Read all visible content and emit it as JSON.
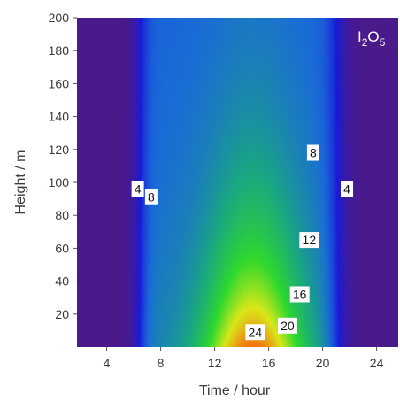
{
  "chart_data": {
    "type": "heatmap",
    "title": "",
    "species_label": {
      "main": "I",
      "sub1": "2",
      "mid": "O",
      "sub2": "5"
    },
    "xlabel": "Time / hour",
    "ylabel": "Height / m",
    "xlim": [
      1.8,
      25.6
    ],
    "ylim": [
      0,
      200
    ],
    "xticks": [
      4,
      8,
      12,
      16,
      20,
      24
    ],
    "yticks": [
      20,
      40,
      60,
      80,
      100,
      120,
      140,
      160,
      180,
      200
    ],
    "grid": false,
    "colormap": [
      "#4a1a8a",
      "#1a1ad8",
      "#1a6ad8",
      "#1aa880",
      "#2ed82e",
      "#d8e81a",
      "#f07a10"
    ],
    "background_color": "#4a1a8a",
    "field": {
      "peak_time": 14.8,
      "peak_height": 8,
      "peak_value": 26,
      "active_start_hour": 6.5,
      "active_end_hour": 21.0
    },
    "contour_labels": [
      {
        "text": "4",
        "x": 6.3,
        "y": 96
      },
      {
        "text": "8",
        "x": 7.3,
        "y": 91
      },
      {
        "text": "8",
        "x": 19.3,
        "y": 118
      },
      {
        "text": "4",
        "x": 21.8,
        "y": 96
      },
      {
        "text": "12",
        "x": 19.0,
        "y": 65
      },
      {
        "text": "16",
        "x": 18.3,
        "y": 32
      },
      {
        "text": "20",
        "x": 17.4,
        "y": 13
      },
      {
        "text": "24",
        "x": 15.0,
        "y": 9
      }
    ]
  }
}
